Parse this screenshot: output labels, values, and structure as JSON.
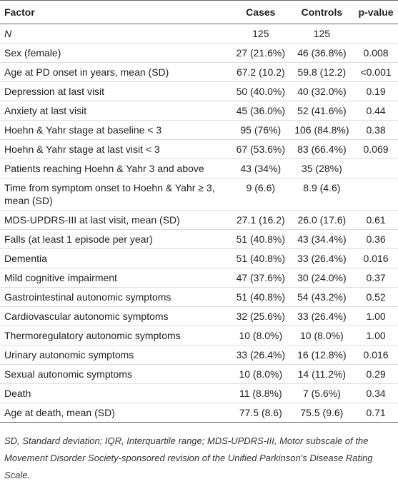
{
  "table": {
    "header": [
      "Factor",
      "Cases",
      "Controls",
      "p-value"
    ],
    "rows": [
      [
        "N",
        "125",
        "125",
        null
      ],
      [
        "Sex (female)",
        "27 (21.6%)",
        "46 (36.8%)",
        "0.008"
      ],
      [
        "Age at PD onset in years, mean (SD)",
        "67.2 (10.2)",
        "59.8 (12.2)",
        "<0.001"
      ],
      [
        "Depression at last visit",
        "50 (40.0%)",
        "40 (32.0%)",
        "0.19"
      ],
      [
        "Anxiety at last visit",
        "45 (36.0%)",
        "52 (41.6%)",
        "0.44"
      ],
      [
        "Hoehn & Yahr stage at baseline < 3",
        "95 (76%)",
        "106 (84.8%)",
        "0.38"
      ],
      [
        "Hoehn & Yahr stage at last visit < 3",
        "67 (53.6%)",
        "83 (66.4%)",
        "0.069"
      ],
      [
        "Patients reaching Hoehn & Yahr 3 and above",
        "43 (34%)",
        "35 (28%)",
        null
      ],
      [
        "Time from symptom onset to Hoehn & Yahr ≥ 3, mean (SD)",
        "9 (6.6)",
        "8.9 (4.6)",
        null
      ],
      [
        "MDS-UPDRS-III at last visit, mean (SD)",
        "27.1 (16.2)",
        "26.0 (17.6)",
        "0.61"
      ],
      [
        "Falls (at least 1 episode per year)",
        "51 (40.8%)",
        "43 (34.4%)",
        "0.36"
      ],
      [
        "Dementia",
        "51 (40.8%)",
        "33 (26.4%)",
        "0.016"
      ],
      [
        "Mild cognitive impairment",
        "47 (37.6%)",
        "30 (24.0%)",
        "0.37"
      ],
      [
        "Gastrointestinal autonomic symptoms",
        "51 (40.8%)",
        "54 (43.2%)",
        "0.52"
      ],
      [
        "Cardiovascular autonomic symptoms",
        "32 (25.6%)",
        "33 (26.4%)",
        "1.00"
      ],
      [
        "Thermoregulatory autonomic symptoms",
        "10 (8.0%)",
        "10 (8.0%)",
        "1.00"
      ],
      [
        "Urinary autonomic symptoms",
        "33 (26.4%)",
        "16 (12.8%)",
        "0.016"
      ],
      [
        "Sexual autonomic symptoms",
        "10 (8.0%)",
        "14 (11.2%)",
        "0.29"
      ],
      [
        "Death",
        "11 (8.8%)",
        "7 (5.6%)",
        "0.34"
      ],
      [
        "Age at death, mean (SD)",
        "77.5 (8.6)",
        "75.5 (9.6)",
        "0.71"
      ]
    ],
    "footnote": "SD, Standard deviation; IQR, Interquartile range; MDS-UPDRS-III, Motor subscale of the Movement Disorder Society-sponsored revision of the Unified Parkinson's Disease Rating Scale."
  }
}
